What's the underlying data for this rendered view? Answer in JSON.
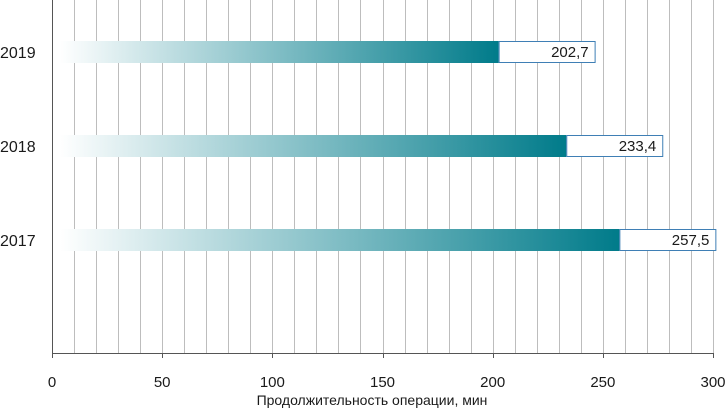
{
  "chart_data": {
    "type": "bar",
    "orientation": "horizontal",
    "categories": [
      "2019",
      "2018",
      "2017"
    ],
    "values": [
      202.7,
      233.4,
      257.5
    ],
    "value_labels": [
      "202,7",
      "233,4",
      "257,5"
    ],
    "title": "",
    "xlabel": "Продолжительность операции, мин",
    "ylabel": "",
    "xlim": [
      0,
      300
    ],
    "x_ticks": [
      0,
      50,
      100,
      150,
      200,
      250,
      300
    ],
    "x_tick_labels": [
      "0",
      "50",
      "100",
      "150",
      "200",
      "250",
      "300"
    ],
    "grid": true,
    "legend": "none",
    "colors": {
      "bar": "#007b8a",
      "bar_fade": "#ffffff",
      "label_border": "#3f7fb5",
      "grid": "#bdbdbd",
      "axis": "#555555"
    }
  }
}
